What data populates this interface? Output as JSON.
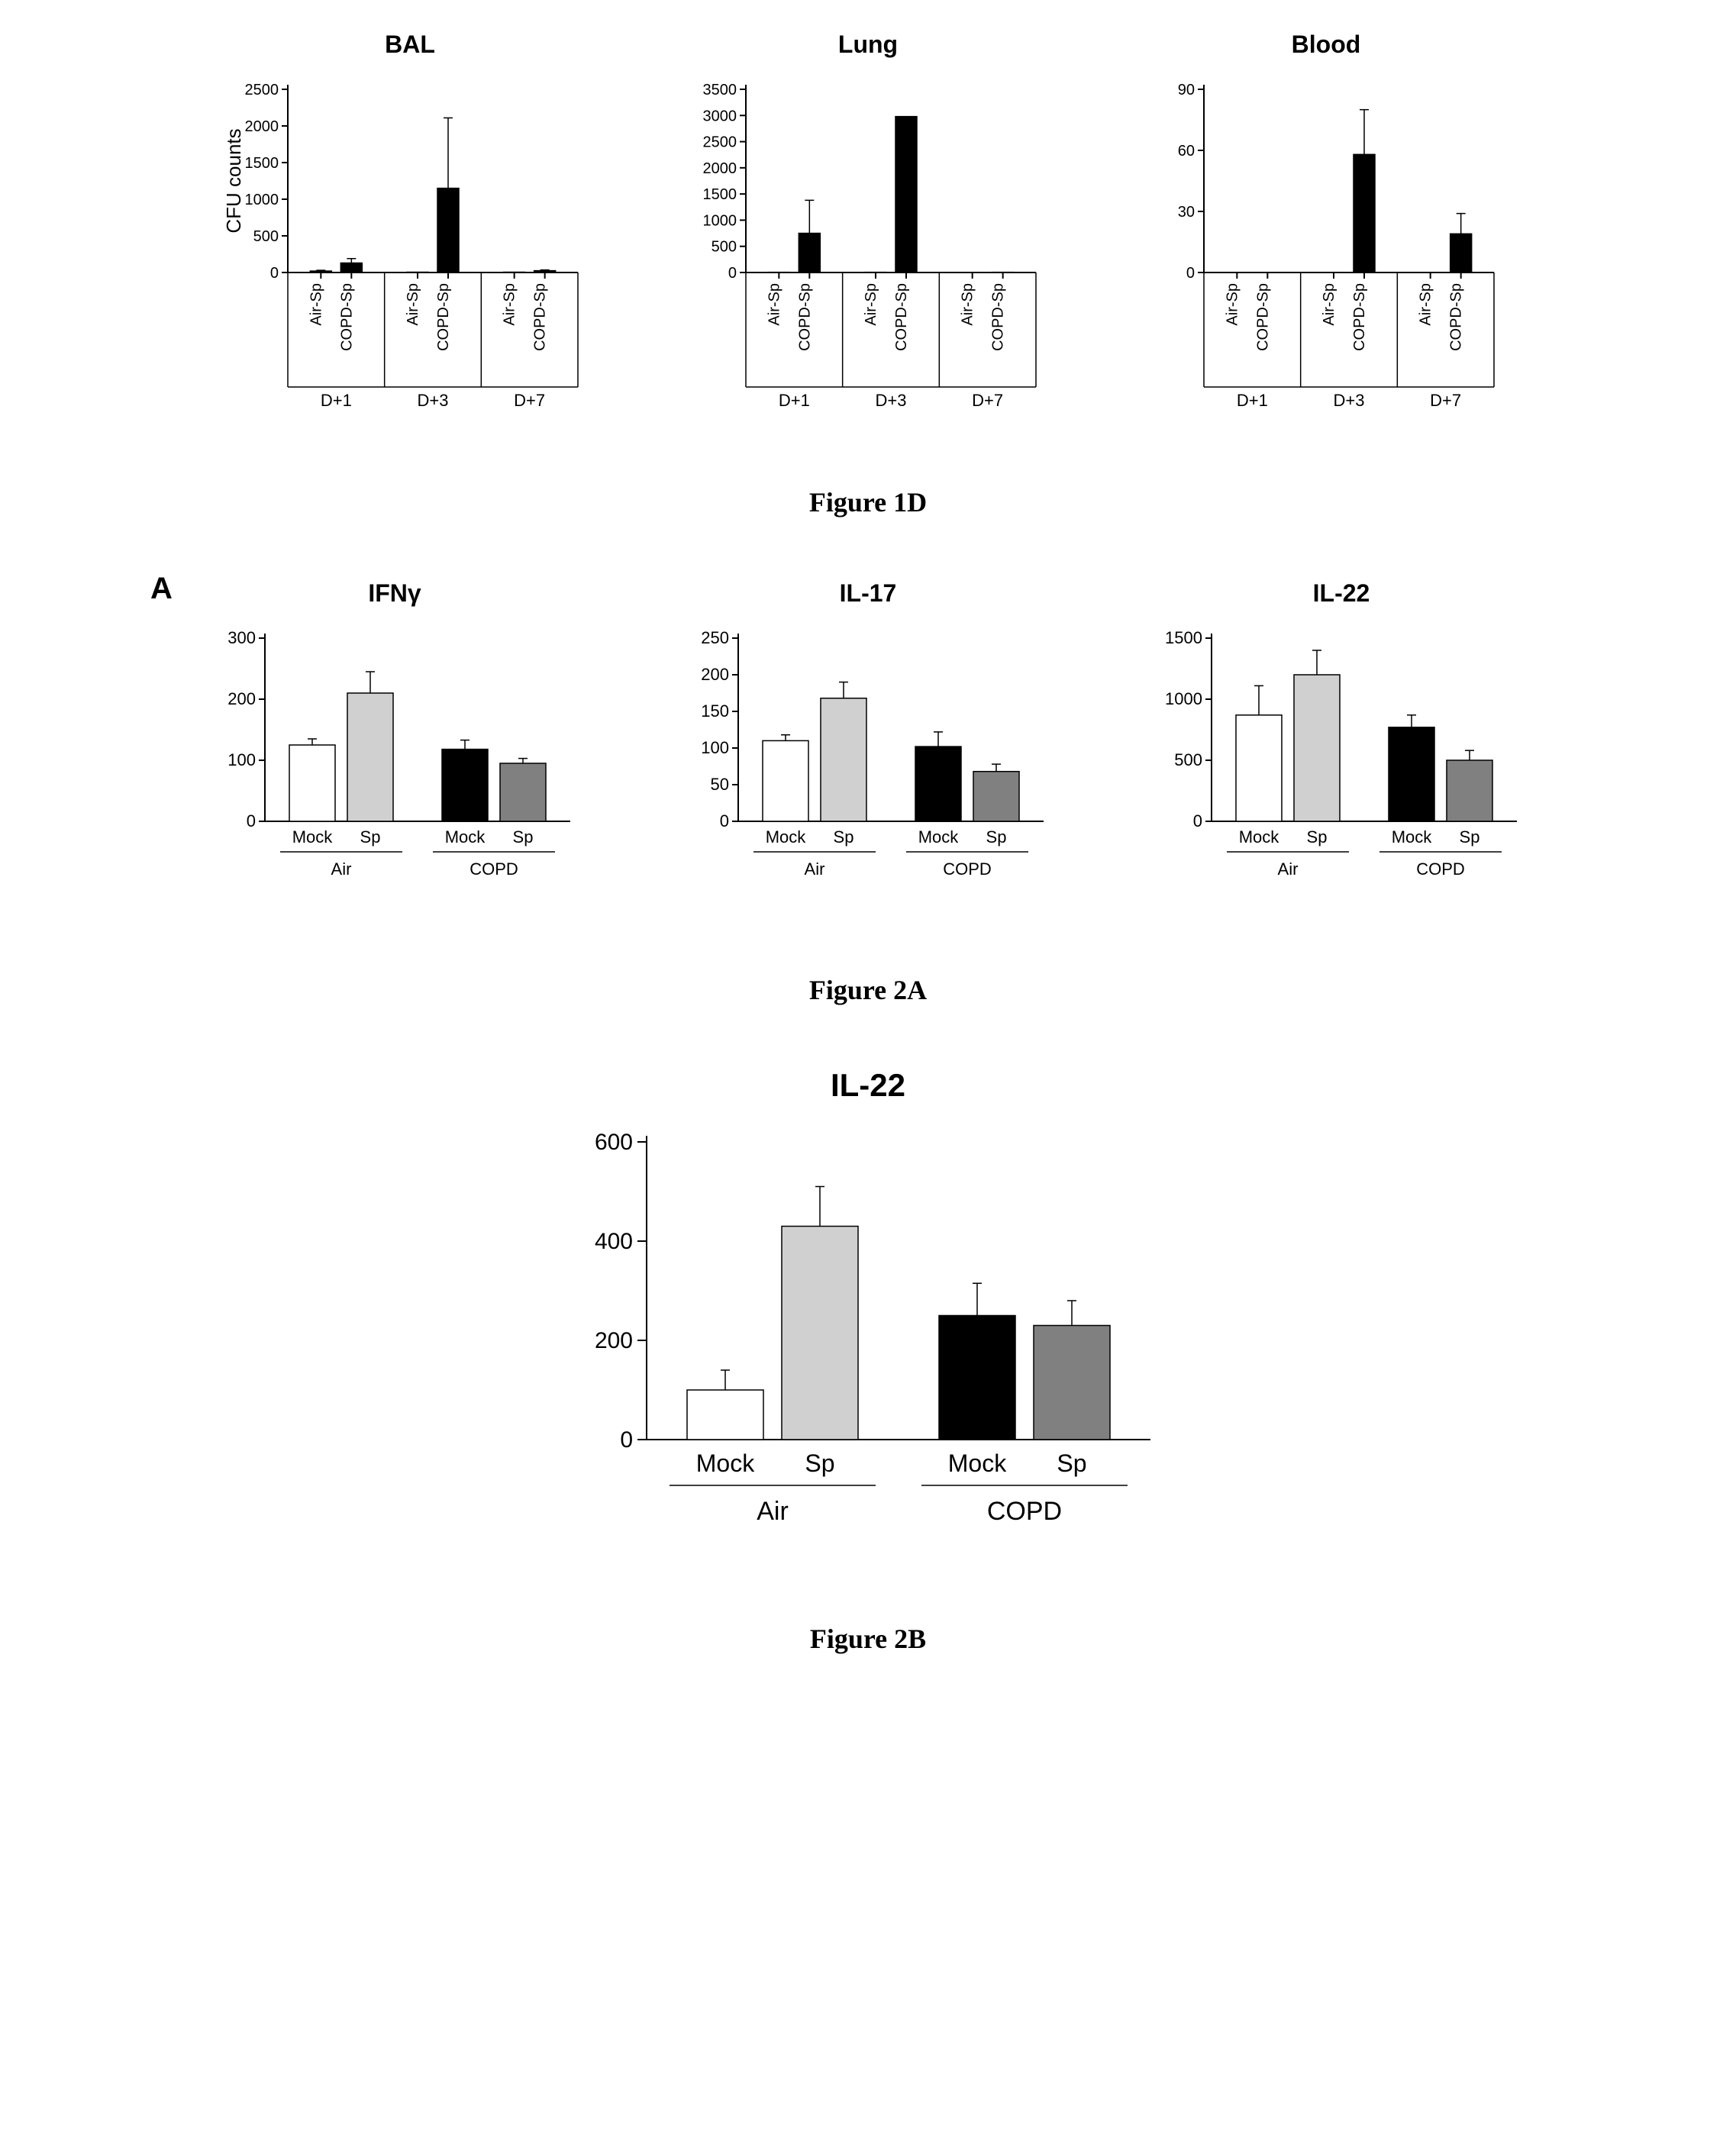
{
  "figure1D": {
    "caption": "Figure 1D",
    "ylabel": "CFU counts",
    "groups": [
      "D+1",
      "D+3",
      "D+7"
    ],
    "subcats": [
      "Air-Sp",
      "COPD-Sp"
    ],
    "bar_color": "#000000",
    "bar_stroke": "#000000",
    "background_color": "#ffffff",
    "charts": [
      {
        "title": "BAL",
        "ylim": [
          0,
          2500
        ],
        "ytick_step": 500,
        "values": [
          20,
          130,
          5,
          1150,
          5,
          25
        ],
        "errors": [
          10,
          60,
          0,
          960,
          0,
          10
        ]
      },
      {
        "title": "Lung",
        "ylim": [
          0,
          3500
        ],
        "ytick_step": 500,
        "values": [
          5,
          750,
          5,
          2980,
          0,
          5
        ],
        "errors": [
          0,
          630,
          0,
          0,
          0,
          0
        ]
      },
      {
        "title": "Blood",
        "ylim": [
          0,
          90
        ],
        "ytick_step": 30,
        "values": [
          0,
          0,
          0,
          58,
          0,
          19
        ],
        "errors": [
          0,
          0,
          0,
          22,
          0,
          10
        ]
      }
    ]
  },
  "figure2A": {
    "caption": "Figure 2A",
    "panel_letter": "A",
    "groups": [
      "Air",
      "COPD"
    ],
    "subcats": [
      "Mock",
      "Sp"
    ],
    "colors": {
      "Air_Mock": "#ffffff",
      "Air_Sp": "#d0d0d0",
      "COPD_Mock": "#000000",
      "COPD_Sp": "#808080"
    },
    "bar_stroke": "#000000",
    "charts": [
      {
        "title": "IFNγ",
        "ylim": [
          0,
          300
        ],
        "ytick_step": 100,
        "values": [
          125,
          210,
          118,
          95
        ],
        "errors": [
          10,
          35,
          15,
          8
        ]
      },
      {
        "title": "IL-17",
        "ylim": [
          0,
          250
        ],
        "ytick_step": 50,
        "values": [
          110,
          168,
          102,
          68
        ],
        "errors": [
          8,
          22,
          20,
          10
        ]
      },
      {
        "title": "IL-22",
        "ylim": [
          0,
          1500
        ],
        "ytick_step": 500,
        "values": [
          870,
          1200,
          770,
          500
        ],
        "errors": [
          240,
          200,
          100,
          80
        ]
      }
    ]
  },
  "figure2B": {
    "caption": "Figure 2B",
    "title": "IL-22",
    "groups": [
      "Air",
      "COPD"
    ],
    "subcats": [
      "Mock",
      "Sp"
    ],
    "colors": {
      "Air_Mock": "#ffffff",
      "Air_Sp": "#d0d0d0",
      "COPD_Mock": "#000000",
      "COPD_Sp": "#808080"
    },
    "bar_stroke": "#000000",
    "ylim": [
      0,
      600
    ],
    "ytick_step": 200,
    "values": [
      100,
      430,
      250,
      230
    ],
    "errors": [
      40,
      80,
      65,
      50
    ]
  }
}
